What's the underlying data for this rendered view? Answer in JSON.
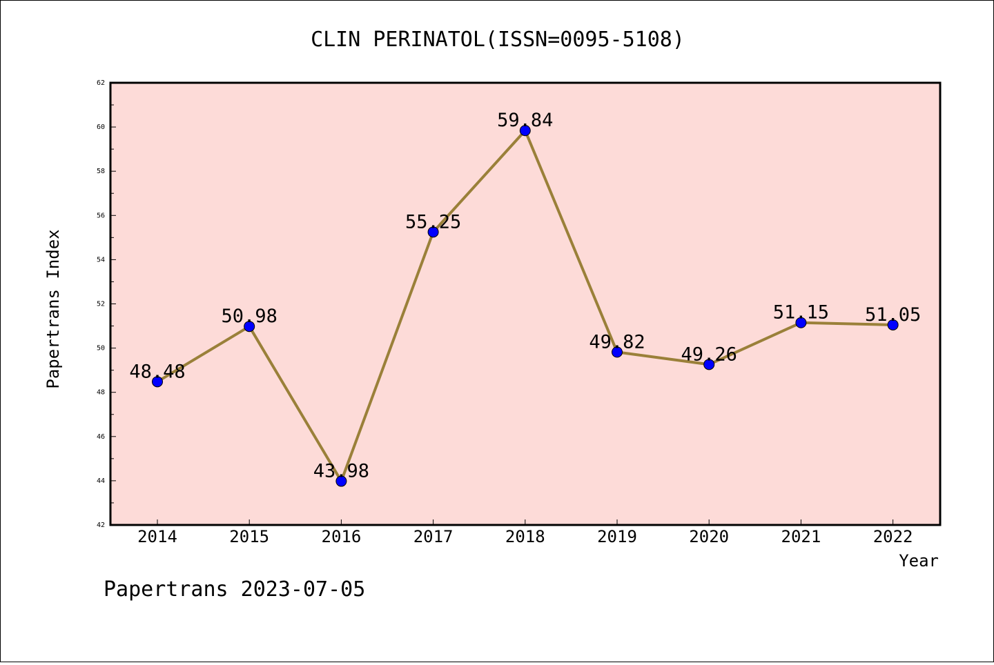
{
  "chart_data": {
    "type": "line",
    "title": "CLIN PERINATOL(ISSN=0095-5108)",
    "xlabel": "Year",
    "ylabel": "Papertrans Index",
    "categories": [
      "2014",
      "2015",
      "2016",
      "2017",
      "2018",
      "2019",
      "2020",
      "2021",
      "2022"
    ],
    "series": [
      {
        "values": [
          48.48,
          50.98,
          43.98,
          55.25,
          59.84,
          49.82,
          49.26,
          51.15,
          51.05
        ]
      }
    ],
    "data_labels": [
      "48.48",
      "50.98",
      "43.98",
      "55.25",
      "59.84",
      "49.82",
      "49.26",
      "51.15",
      "51.05"
    ],
    "ylim": [
      42,
      62
    ],
    "y_ticks": [
      "42",
      "44",
      "46",
      "48",
      "50",
      "52",
      "54",
      "56",
      "58",
      "60",
      "62"
    ],
    "grid": false,
    "footer": "Papertrans 2023-07-05",
    "colors": {
      "plot_background": "#FDDBD8",
      "line": "#9A8039",
      "marker": "#0000FF"
    }
  }
}
